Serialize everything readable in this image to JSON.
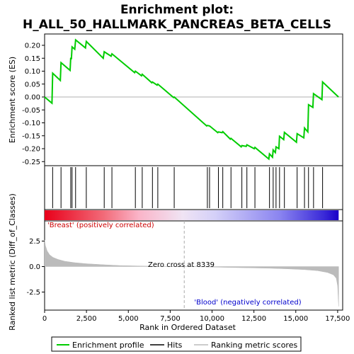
{
  "chart_data": {
    "type": "line",
    "title_line1": "Enrichment plot:",
    "title_line2": "H_ALL_50_HALLMARK_PANCREAS_BETA_CELLS",
    "xlabel": "Rank in Ordered Dataset",
    "ylabel_top": "Enrichment score (ES)",
    "ylabel_bottom": "Ranked list metric (Diff_of_Classes)",
    "xlim": [
      0,
      17800
    ],
    "xticks": [
      0,
      2500,
      5000,
      7500,
      10000,
      12500,
      15000,
      17500
    ],
    "xtick_labels": [
      "0",
      "2,500",
      "5,000",
      "7,500",
      "10,000",
      "12,500",
      "15,000",
      "17,500"
    ],
    "es_ylim": [
      -0.27,
      0.24
    ],
    "es_yticks": [
      -0.25,
      -0.2,
      -0.15,
      -0.1,
      -0.05,
      0.0,
      0.05,
      0.1,
      0.15,
      0.2
    ],
    "es_ytick_labels": [
      "-0.25",
      "-0.20",
      "-0.15",
      "-0.10",
      "-0.05",
      "0.00",
      "0.05",
      "0.10",
      "0.15",
      "0.20"
    ],
    "metric_ylim": [
      -4.0,
      4.2
    ],
    "metric_yticks": [
      -2.5,
      0.0,
      2.5
    ],
    "metric_ytick_labels": [
      "-2.5",
      "0.0",
      "2.5"
    ],
    "zero_cross": 8339,
    "zero_cross_label": "Zero cross at 8339",
    "pos_label": "'Breast' (positively correlated)",
    "neg_label": "'Blood' (negatively correlated)",
    "hits": [
      480,
      980,
      1560,
      1640,
      1850,
      2490,
      3560,
      4020,
      5420,
      5830,
      6440,
      6760,
      7740,
      9720,
      9850,
      10380,
      10640,
      11130,
      11780,
      12080,
      12560,
      13430,
      13650,
      13820,
      14030,
      14320,
      15080,
      15520,
      15760,
      16060,
      16600
    ],
    "es_points": [
      [
        0,
        0.0
      ],
      [
        440,
        -0.024
      ],
      [
        480,
        0.092
      ],
      [
        940,
        0.064
      ],
      [
        980,
        0.133
      ],
      [
        1520,
        0.103
      ],
      [
        1560,
        0.152
      ],
      [
        1600,
        0.146
      ],
      [
        1640,
        0.194
      ],
      [
        1800,
        0.185
      ],
      [
        1850,
        0.221
      ],
      [
        2440,
        0.19
      ],
      [
        2490,
        0.215
      ],
      [
        3500,
        0.15
      ],
      [
        3560,
        0.175
      ],
      [
        3970,
        0.158
      ],
      [
        4020,
        0.167
      ],
      [
        5380,
        0.094
      ],
      [
        5420,
        0.1
      ],
      [
        5790,
        0.082
      ],
      [
        5830,
        0.088
      ],
      [
        6400,
        0.055
      ],
      [
        6440,
        0.058
      ],
      [
        6720,
        0.046
      ],
      [
        6760,
        0.05
      ],
      [
        7700,
        -0.002
      ],
      [
        7740,
        0.0
      ],
      [
        9680,
        -0.112
      ],
      [
        9720,
        -0.11
      ],
      [
        9850,
        -0.112
      ],
      [
        10340,
        -0.138
      ],
      [
        10380,
        -0.135
      ],
      [
        10600,
        -0.138
      ],
      [
        10640,
        -0.134
      ],
      [
        11090,
        -0.163
      ],
      [
        11130,
        -0.16
      ],
      [
        11740,
        -0.193
      ],
      [
        11780,
        -0.188
      ],
      [
        12040,
        -0.191
      ],
      [
        12080,
        -0.185
      ],
      [
        12520,
        -0.2
      ],
      [
        12560,
        -0.195
      ],
      [
        13390,
        -0.24
      ],
      [
        13430,
        -0.22
      ],
      [
        13610,
        -0.233
      ],
      [
        13650,
        -0.205
      ],
      [
        13780,
        -0.215
      ],
      [
        13820,
        -0.193
      ],
      [
        13990,
        -0.2
      ],
      [
        14030,
        -0.152
      ],
      [
        14280,
        -0.165
      ],
      [
        14320,
        -0.137
      ],
      [
        15040,
        -0.175
      ],
      [
        15080,
        -0.142
      ],
      [
        15480,
        -0.158
      ],
      [
        15520,
        -0.12
      ],
      [
        15720,
        -0.135
      ],
      [
        15760,
        -0.03
      ],
      [
        16020,
        -0.04
      ],
      [
        16060,
        0.013
      ],
      [
        16560,
        -0.01
      ],
      [
        16600,
        0.058
      ],
      [
        17550,
        0.0
      ]
    ],
    "metric_curve": [
      [
        0,
        2.6
      ],
      [
        50,
        2.05
      ],
      [
        150,
        1.55
      ],
      [
        300,
        1.15
      ],
      [
        500,
        0.9
      ],
      [
        800,
        0.7
      ],
      [
        1200,
        0.52
      ],
      [
        1800,
        0.38
      ],
      [
        2500,
        0.28
      ],
      [
        3500,
        0.18
      ],
      [
        4500,
        0.1
      ],
      [
        5500,
        0.06
      ],
      [
        6500,
        0.03
      ],
      [
        7500,
        0.01
      ],
      [
        8339,
        0.0
      ],
      [
        9500,
        -0.03
      ],
      [
        11000,
        -0.08
      ],
      [
        12500,
        -0.13
      ],
      [
        13500,
        -0.17
      ],
      [
        14500,
        -0.22
      ],
      [
        15500,
        -0.3
      ],
      [
        16300,
        -0.4
      ],
      [
        16900,
        -0.58
      ],
      [
        17250,
        -0.82
      ],
      [
        17420,
        -1.15
      ],
      [
        17500,
        -1.9
      ],
      [
        17560,
        -3.9
      ]
    ],
    "legend": [
      "Enrichment profile",
      "Hits",
      "Ranking metric scores"
    ],
    "colors": {
      "es_line": "#00cc00",
      "hits": "#000000",
      "metric": "#bbbbbb",
      "zero_cross_line": "#aaaaaa",
      "pos_text": "#cc0000",
      "neg_text": "#0000cc",
      "frame": "#000000"
    }
  }
}
